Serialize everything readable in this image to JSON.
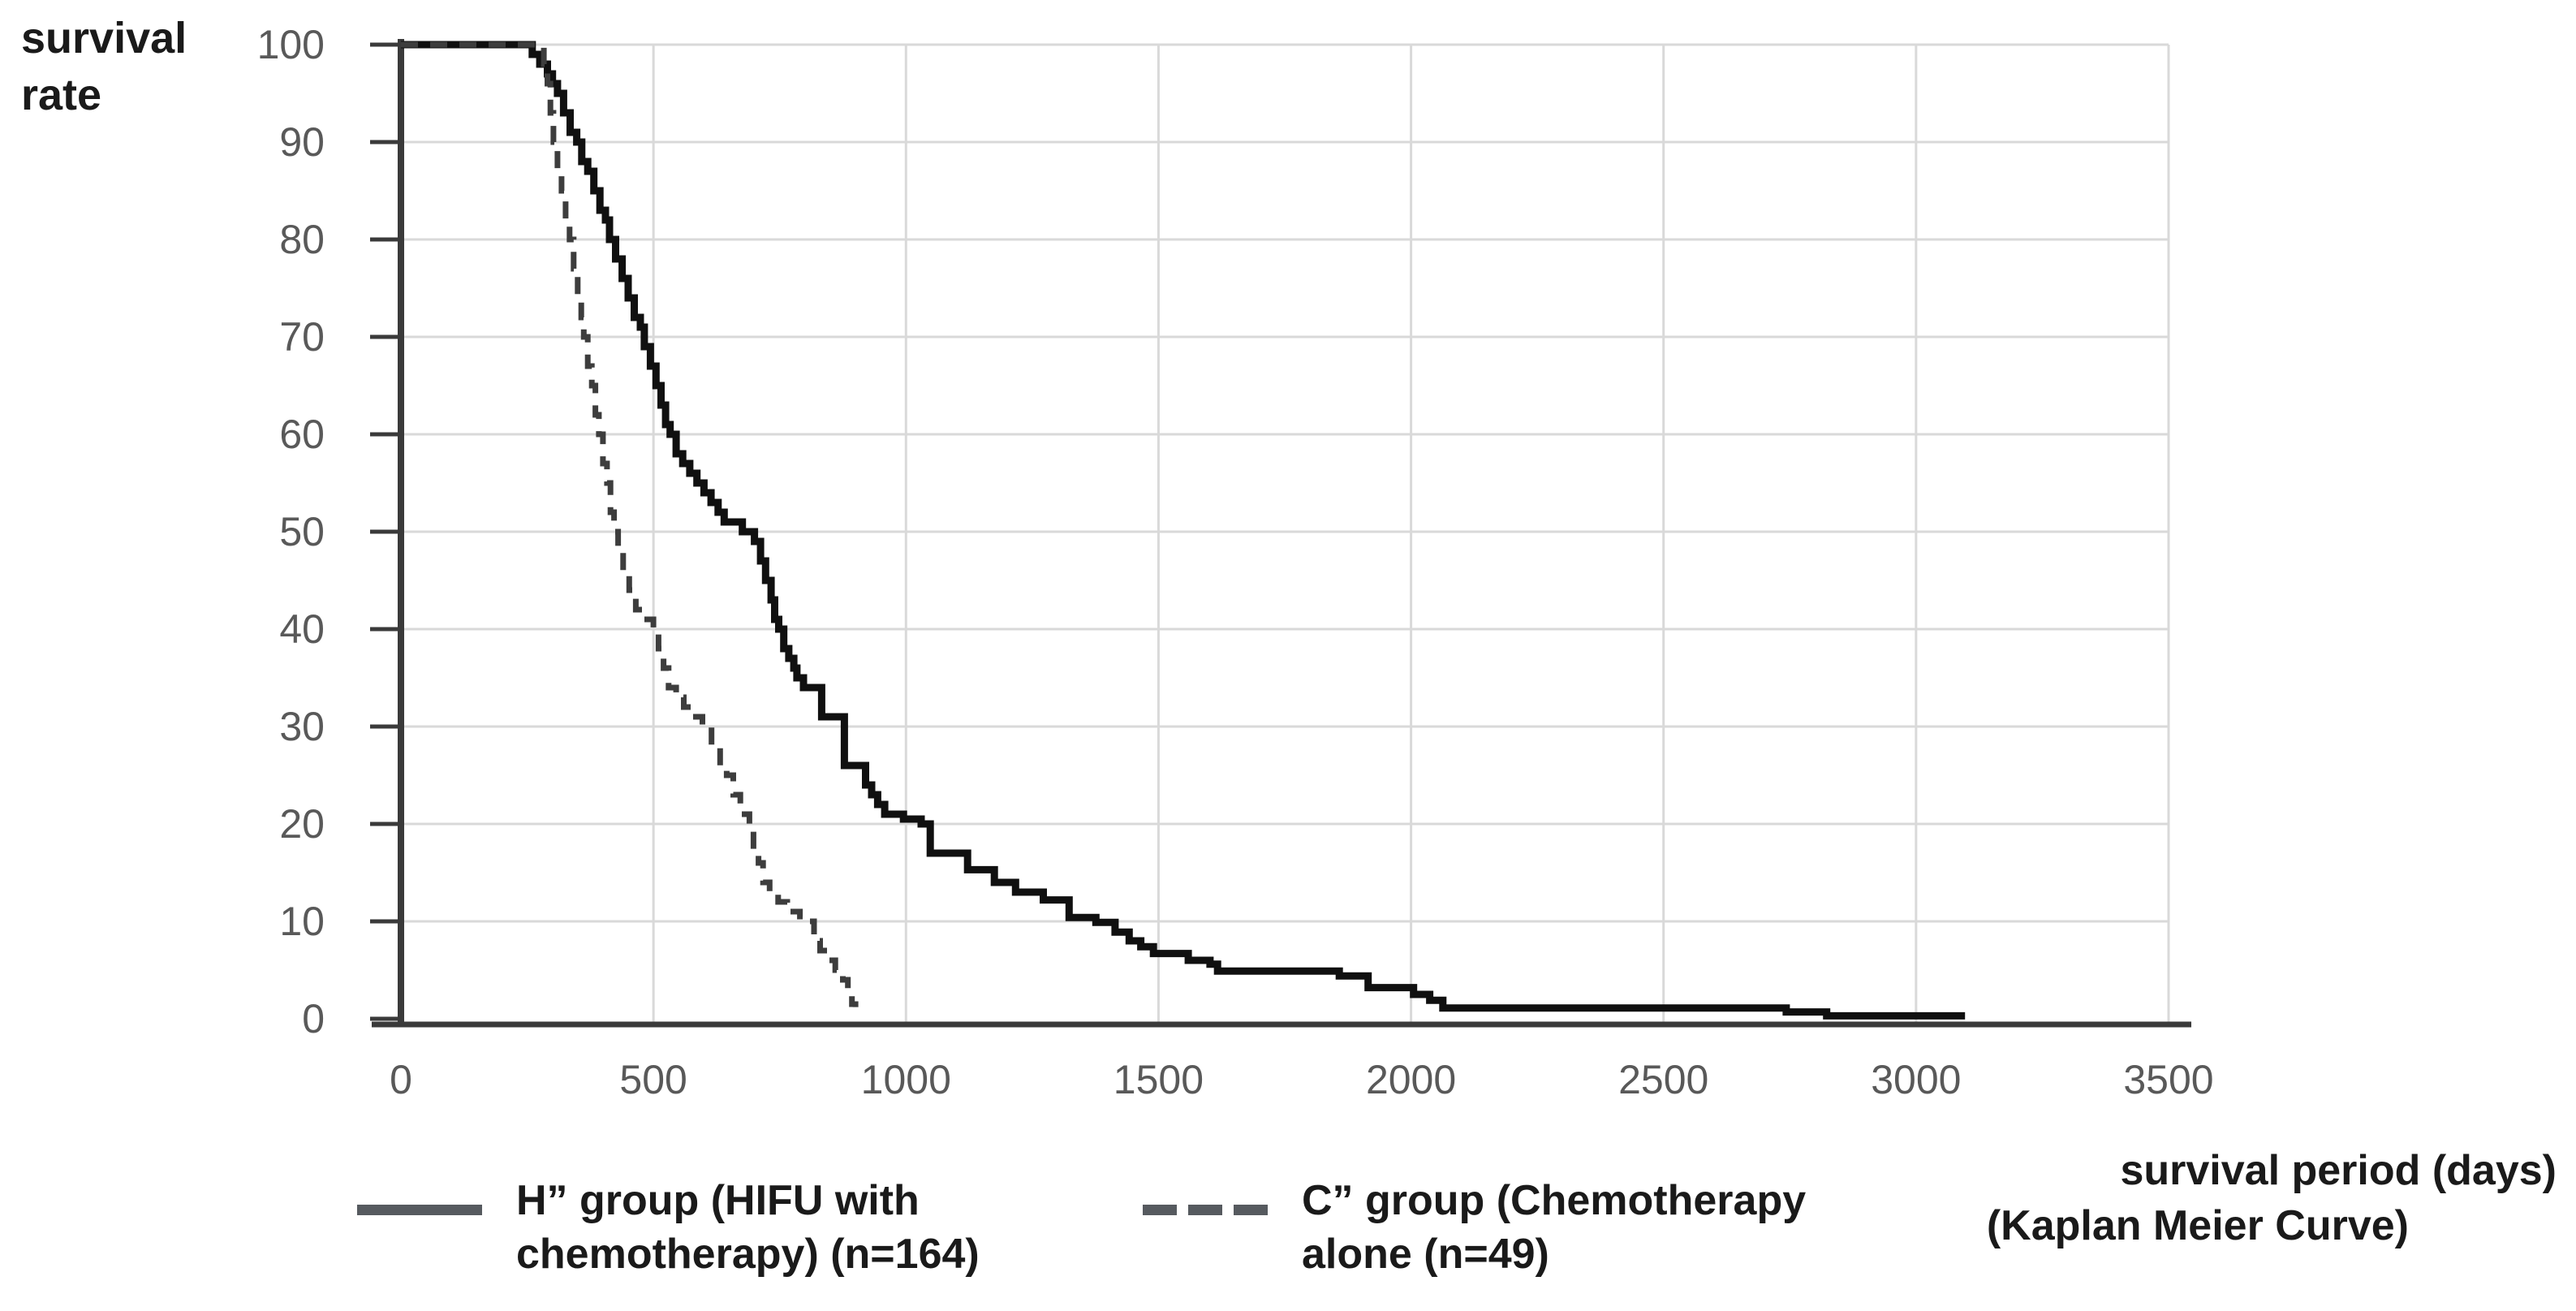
{
  "chart_data": {
    "type": "line",
    "chart_style": "kaplan-meier-step",
    "title": "",
    "ylabel": "survival\nrate",
    "xlabel": "survival period (days)",
    "xlabel_subtitle": "(Kaplan Meier Curve)",
    "xlim": [
      0,
      3500
    ],
    "ylim": [
      0,
      100
    ],
    "x_ticks": [
      0,
      500,
      1000,
      1500,
      2000,
      2500,
      3000,
      3500
    ],
    "y_ticks": [
      0,
      10,
      20,
      30,
      40,
      50,
      60,
      70,
      80,
      90,
      100
    ],
    "grid": true,
    "legend_position": "bottom",
    "colors": {
      "background": "#ffffff",
      "gridline": "#d9d9d9",
      "axis": "#3a3a3a",
      "tick_label": "#595959",
      "text": "#1a1a1a",
      "h_curve": "#101010",
      "c_curve": "#3d3d3d",
      "legend_swatch": "#565a5f"
    },
    "series": [
      {
        "name": "H” group (HIFU with chemotherapy) (n=164)",
        "legend_label": "H” group (HIFU with\nchemotherapy) (n=164)",
        "line_style": "solid",
        "color": "#101010",
        "points": [
          [
            0,
            100
          ],
          [
            260,
            99
          ],
          [
            275,
            98
          ],
          [
            290,
            97
          ],
          [
            300,
            96
          ],
          [
            310,
            95
          ],
          [
            322,
            93
          ],
          [
            335,
            91
          ],
          [
            348,
            90
          ],
          [
            358,
            88
          ],
          [
            370,
            87
          ],
          [
            382,
            85
          ],
          [
            394,
            83
          ],
          [
            405,
            82
          ],
          [
            413,
            80
          ],
          [
            425,
            78
          ],
          [
            438,
            76
          ],
          [
            450,
            74
          ],
          [
            462,
            72
          ],
          [
            474,
            71
          ],
          [
            482,
            69
          ],
          [
            494,
            67
          ],
          [
            505,
            65
          ],
          [
            515,
            63
          ],
          [
            524,
            61
          ],
          [
            533,
            60
          ],
          [
            545,
            58
          ],
          [
            558,
            57
          ],
          [
            572,
            56
          ],
          [
            586,
            55
          ],
          [
            600,
            54
          ],
          [
            614,
            53
          ],
          [
            628,
            52
          ],
          [
            640,
            51
          ],
          [
            676,
            50
          ],
          [
            700,
            49
          ],
          [
            712,
            47
          ],
          [
            722,
            45
          ],
          [
            733,
            43
          ],
          [
            740,
            41
          ],
          [
            748,
            40
          ],
          [
            758,
            38
          ],
          [
            768,
            37
          ],
          [
            778,
            36
          ],
          [
            784,
            35
          ],
          [
            797,
            34
          ],
          [
            833,
            31
          ],
          [
            878,
            26
          ],
          [
            920,
            24
          ],
          [
            932,
            23
          ],
          [
            944,
            22
          ],
          [
            958,
            21
          ],
          [
            995,
            20.5
          ],
          [
            1030,
            20
          ],
          [
            1048,
            17
          ],
          [
            1122,
            15.3
          ],
          [
            1175,
            14
          ],
          [
            1217,
            13
          ],
          [
            1272,
            12.2
          ],
          [
            1323,
            10.4
          ],
          [
            1376,
            9.9
          ],
          [
            1414,
            8.9
          ],
          [
            1442,
            8
          ],
          [
            1465,
            7.4
          ],
          [
            1490,
            6.7
          ],
          [
            1559,
            6
          ],
          [
            1602,
            5.6
          ],
          [
            1617,
            4.9
          ],
          [
            1858,
            4.4
          ],
          [
            1915,
            3.2
          ],
          [
            2005,
            2.5
          ],
          [
            2037,
            1.9
          ],
          [
            2063,
            1.1
          ],
          [
            2743,
            0.7
          ],
          [
            2823,
            0.3
          ],
          [
            3097,
            0.3
          ]
        ]
      },
      {
        "name": "C” group (Chemotherapy alone (n=49)",
        "legend_label": "C” group (Chemotherapy\nalone (n=49)",
        "line_style": "dashed",
        "color": "#3d3d3d",
        "points": [
          [
            0,
            100
          ],
          [
            283,
            98
          ],
          [
            290,
            96
          ],
          [
            296,
            93
          ],
          [
            302,
            90
          ],
          [
            310,
            87
          ],
          [
            318,
            85
          ],
          [
            326,
            82
          ],
          [
            334,
            80
          ],
          [
            342,
            77
          ],
          [
            350,
            74
          ],
          [
            357,
            72
          ],
          [
            362,
            70
          ],
          [
            370,
            67
          ],
          [
            378,
            65
          ],
          [
            385,
            62
          ],
          [
            392,
            60
          ],
          [
            400,
            57
          ],
          [
            408,
            55
          ],
          [
            415,
            52
          ],
          [
            422,
            50
          ],
          [
            430,
            48
          ],
          [
            440,
            46
          ],
          [
            452,
            44
          ],
          [
            465,
            42
          ],
          [
            480,
            41
          ],
          [
            500,
            40
          ],
          [
            510,
            38
          ],
          [
            520,
            36
          ],
          [
            530,
            34
          ],
          [
            545,
            33
          ],
          [
            560,
            32
          ],
          [
            575,
            31
          ],
          [
            597,
            30
          ],
          [
            615,
            28
          ],
          [
            632,
            26
          ],
          [
            645,
            25
          ],
          [
            658,
            23
          ],
          [
            672,
            21
          ],
          [
            690,
            20
          ],
          [
            698,
            17
          ],
          [
            708,
            16
          ],
          [
            717,
            14
          ],
          [
            730,
            13
          ],
          [
            747,
            12
          ],
          [
            765,
            11
          ],
          [
            790,
            10.5
          ],
          [
            806,
            10
          ],
          [
            818,
            8
          ],
          [
            830,
            7
          ],
          [
            845,
            6
          ],
          [
            860,
            5
          ],
          [
            875,
            4
          ],
          [
            885,
            2.5
          ],
          [
            893,
            1.5
          ],
          [
            900,
            1.2
          ]
        ]
      }
    ]
  }
}
